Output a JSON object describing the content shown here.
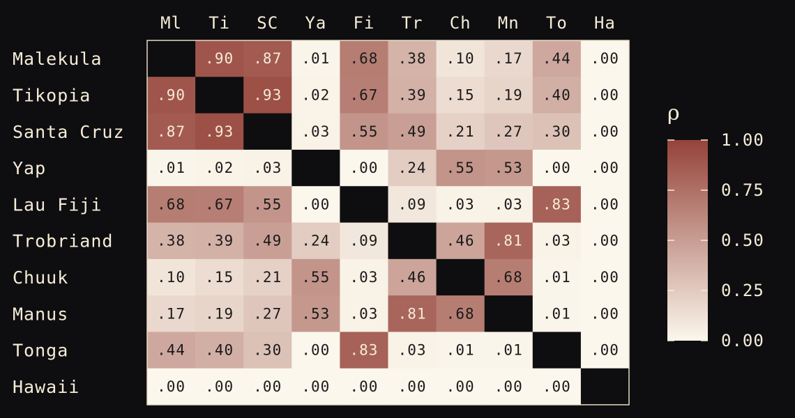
{
  "chart_data": {
    "type": "heatmap",
    "row_labels": [
      "Malekula",
      "Tikopia",
      "Santa Cruz",
      "Yap",
      "Lau Fiji",
      "Trobriand",
      "Chuuk",
      "Manus",
      "Tonga",
      "Hawaii"
    ],
    "col_labels": [
      "Ml",
      "Ti",
      "SC",
      "Ya",
      "Fi",
      "Tr",
      "Ch",
      "Mn",
      "To",
      "Ha"
    ],
    "values": [
      [
        null,
        0.9,
        0.87,
        0.01,
        0.68,
        0.38,
        0.1,
        0.17,
        0.44,
        0.0
      ],
      [
        0.9,
        null,
        0.93,
        0.02,
        0.67,
        0.39,
        0.15,
        0.19,
        0.4,
        0.0
      ],
      [
        0.87,
        0.93,
        null,
        0.03,
        0.55,
        0.49,
        0.21,
        0.27,
        0.3,
        0.0
      ],
      [
        0.01,
        0.02,
        0.03,
        null,
        0.0,
        0.24,
        0.55,
        0.53,
        0.0,
        0.0
      ],
      [
        0.68,
        0.67,
        0.55,
        0.0,
        null,
        0.09,
        0.03,
        0.03,
        0.83,
        0.0
      ],
      [
        0.38,
        0.39,
        0.49,
        0.24,
        0.09,
        null,
        0.46,
        0.81,
        0.03,
        0.0
      ],
      [
        0.1,
        0.15,
        0.21,
        0.55,
        0.03,
        0.46,
        null,
        0.68,
        0.01,
        0.0
      ],
      [
        0.17,
        0.19,
        0.27,
        0.53,
        0.03,
        0.81,
        0.68,
        null,
        0.01,
        0.0
      ],
      [
        0.44,
        0.4,
        0.3,
        0.0,
        0.83,
        0.03,
        0.01,
        0.01,
        null,
        0.0
      ],
      [
        0.0,
        0.0,
        0.0,
        0.0,
        0.0,
        0.0,
        0.0,
        0.0,
        0.0,
        null
      ]
    ],
    "value_range": [
      0,
      1
    ],
    "colorbar": {
      "title": "ρ",
      "ticks": [
        1.0,
        0.75,
        0.5,
        0.25,
        0.0
      ],
      "tick_labels": [
        "1.00",
        "0.75",
        "0.50",
        "0.25",
        "0.00"
      ]
    },
    "colors": {
      "low": "#fbf7ec",
      "high": "#95433a",
      "diagonal": "#0e0e10",
      "background": "#0e0e10",
      "text_dark": "#1a1a1a",
      "text_light": "#f5ecd8",
      "frame": "#e6dcc6"
    }
  }
}
